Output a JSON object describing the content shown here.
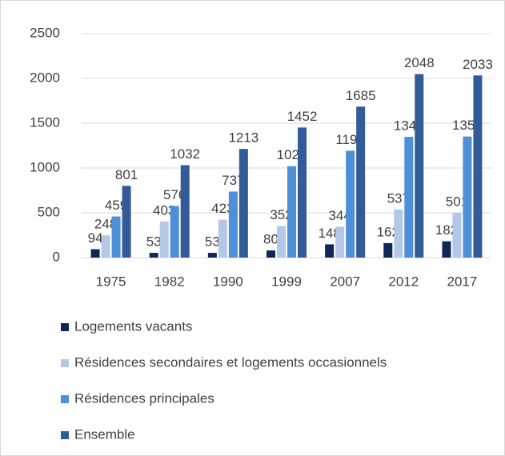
{
  "chart_data": {
    "type": "bar",
    "categories": [
      "1975",
      "1982",
      "1990",
      "1999",
      "2007",
      "2012",
      "2017"
    ],
    "series": [
      {
        "name": "Logements vacants",
        "color": "#0f2756",
        "values": [
          94,
          53,
          53,
          80,
          148,
          162,
          182
        ]
      },
      {
        "name": "Résidences secondaires et logements occasionnels",
        "color": "#b4c7e7",
        "values": [
          248,
          403,
          423,
          352,
          344,
          537,
          501
        ]
      },
      {
        "name": "Résidences principales",
        "color": "#4f8fd9",
        "values": [
          459,
          576,
          737,
          1020,
          1193,
          1348,
          1351
        ]
      },
      {
        "name": "Ensemble",
        "color": "#335b98",
        "values": [
          801,
          1032,
          1213,
          1452,
          1685,
          2048,
          2033
        ]
      }
    ],
    "ylim": [
      0,
      2500
    ],
    "yticks": [
      0,
      500,
      1000,
      1500,
      2000,
      2500
    ],
    "grid": true,
    "legend": "bottom"
  }
}
